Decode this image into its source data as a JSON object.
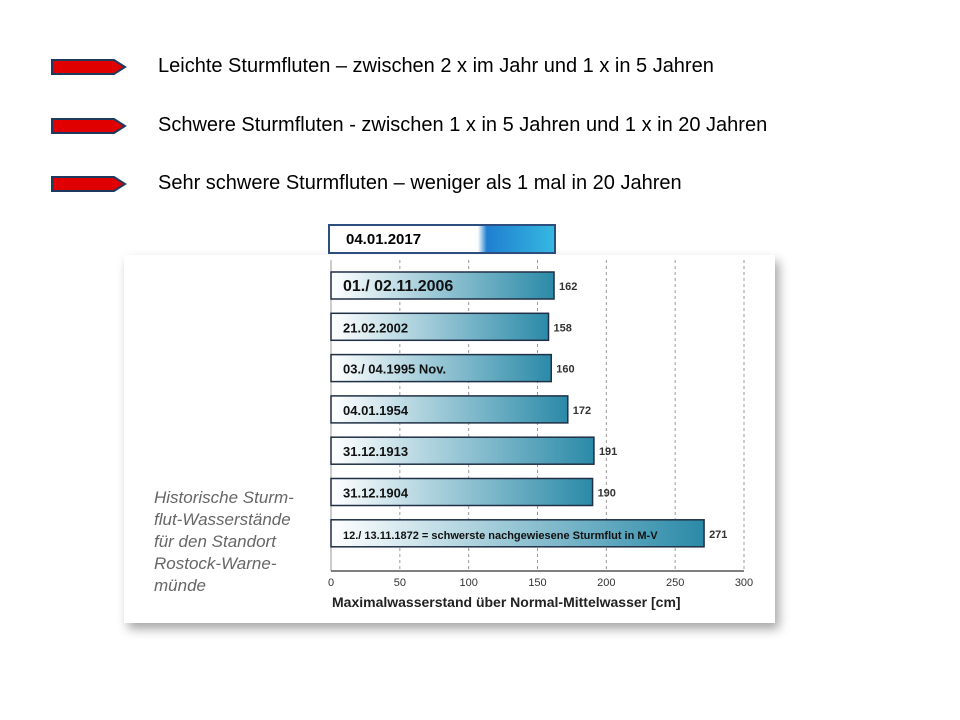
{
  "bullets": [
    {
      "text": "Leichte Sturmfluten – zwischen 2 x im Jahr und 1 x in 5 Jahren"
    },
    {
      "text": "Schwere Sturmfluten  - zwischen 1 x in 5 Jahren und 1 x in 20 Jahren"
    },
    {
      "text": "Sehr schwere Sturmfluten – weniger als 1 mal in 20 Jahren"
    }
  ],
  "arrow_color": "#e00000",
  "highlight_date": "04.01.2017",
  "caption_lines": [
    "Historische Sturm-",
    "flut-Wasserstände",
    "für den Standort",
    "Rostock-Warne-",
    "münde"
  ],
  "chart_data": {
    "type": "bar",
    "orientation": "horizontal",
    "categories": [
      "01./ 02.11.2006",
      "21.02.2002",
      "03./ 04.1995  Nov.",
      "04.01.1954",
      "31.12.1913",
      "31.12.1904",
      "12./ 13.11.1872 = schwerste nachgewiesene Sturmflut in M-V"
    ],
    "values": [
      162,
      158,
      160,
      172,
      191,
      190,
      271
    ],
    "value_labels": [
      "162",
      "158",
      "160",
      "172",
      "191",
      "190",
      "271"
    ],
    "xlabel": "Maximalwasserstand über Normal-Mittelwasser [cm]",
    "xlim": [
      0,
      300
    ],
    "xticks": [
      "0",
      "50",
      "100",
      "150",
      "200",
      "250",
      "300"
    ],
    "grid": "vertical dashed",
    "bar_color_start": "#ffffff",
    "bar_color_end": "#2a8aa8"
  }
}
